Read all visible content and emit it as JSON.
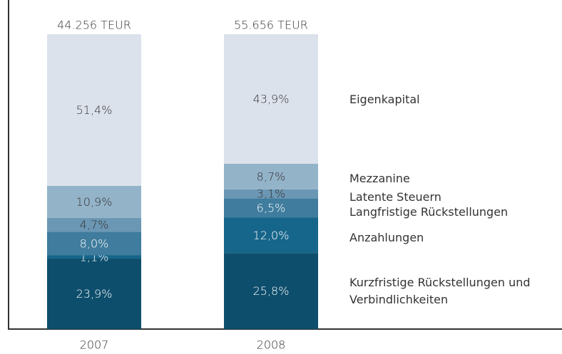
{
  "chart_data": {
    "type": "stacked_bar_100",
    "categories": [
      "2007",
      "2008"
    ],
    "annotations": [
      "44.256 TEUR",
      "55.656 TEUR"
    ],
    "ylim": [
      0,
      100
    ],
    "series": [
      {
        "name": "Kurzfristige Rückstellungen und Verbindlichkeiten",
        "color": "#0d4e6c",
        "values": [
          23.9,
          25.8
        ],
        "value_labels": [
          "23,9%",
          "25,8%"
        ]
      },
      {
        "name": "Anzahlungen",
        "color": "#16658a",
        "values": [
          1.1,
          12.0
        ],
        "value_labels": [
          "1,1%",
          "12,0%"
        ]
      },
      {
        "name": "Langfristige Rückstellungen",
        "color": "#3f7c9d",
        "values": [
          8.0,
          6.5
        ],
        "value_labels": [
          "8,0%",
          "6,5%"
        ]
      },
      {
        "name": "Latente Steuern",
        "color": "#6b97b4",
        "values": [
          4.7,
          3.1
        ],
        "value_labels": [
          "4,7%",
          "3,1%"
        ]
      },
      {
        "name": "Mezzanine",
        "color": "#93b3c9",
        "values": [
          10.9,
          8.7
        ],
        "value_labels": [
          "10,9%",
          "8,7%"
        ]
      },
      {
        "name": "Eigenkapital",
        "color": "#dce2ec",
        "values": [
          51.4,
          43.9
        ],
        "value_labels": [
          "51,4%",
          "43,9%"
        ]
      }
    ]
  }
}
